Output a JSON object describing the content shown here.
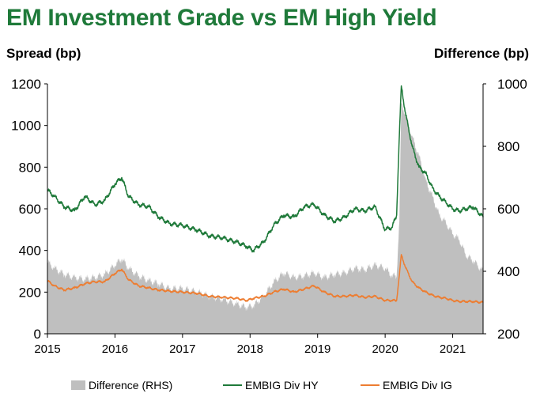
{
  "chart_data": {
    "type": "line",
    "title": "EM Investment Grade vs EM High Yield",
    "ylabel": "Spread (bp)",
    "y2label": "Difference (bp)",
    "ylim": [
      0,
      1200
    ],
    "y2lim": [
      200,
      1000
    ],
    "yticks": [
      "0",
      "200",
      "400",
      "600",
      "800",
      "1000",
      "1200"
    ],
    "y2ticks": [
      "200",
      "400",
      "600",
      "800",
      "1000"
    ],
    "xlim": [
      2015.0,
      2021.45
    ],
    "xticks": [
      "2015",
      "2016",
      "2017",
      "2018",
      "2019",
      "2020",
      "2021"
    ],
    "legend_position": "bottom",
    "series": [
      {
        "name": "Difference (RHS)",
        "type": "area",
        "axis": "right",
        "color": "#bfbfbf",
        "x": [
          2015.0,
          2015.1,
          2015.25,
          2015.4,
          2015.55,
          2015.7,
          2015.85,
          2016.0,
          2016.1,
          2016.2,
          2016.35,
          2016.5,
          2016.65,
          2016.8,
          2017.0,
          2017.2,
          2017.4,
          2017.6,
          2017.8,
          2017.95,
          2018.05,
          2018.2,
          2018.35,
          2018.5,
          2018.65,
          2018.8,
          2018.95,
          2019.1,
          2019.25,
          2019.4,
          2019.55,
          2019.7,
          2019.85,
          2020.0,
          2020.1,
          2020.17,
          2020.21,
          2020.24,
          2020.3,
          2020.4,
          2020.5,
          2020.6,
          2020.7,
          2020.8,
          2020.9,
          2021.0,
          2021.1,
          2021.2,
          2021.3,
          2021.45
        ],
        "values": [
          430,
          410,
          390,
          380,
          375,
          380,
          390,
          420,
          440,
          410,
          385,
          370,
          360,
          345,
          345,
          335,
          320,
          310,
          295,
          285,
          290,
          320,
          365,
          395,
          380,
          385,
          395,
          380,
          390,
          395,
          410,
          405,
          420,
          410,
          385,
          385,
          560,
          940,
          900,
          830,
          770,
          690,
          640,
          580,
          555,
          520,
          500,
          450,
          435,
          400
        ]
      },
      {
        "name": "EMBIG Div HY",
        "type": "line",
        "axis": "left",
        "color": "#1f7a3a",
        "x": [
          2015.0,
          2015.1,
          2015.25,
          2015.4,
          2015.55,
          2015.7,
          2015.85,
          2016.0,
          2016.1,
          2016.2,
          2016.35,
          2016.5,
          2016.65,
          2016.8,
          2017.0,
          2017.2,
          2017.4,
          2017.6,
          2017.8,
          2017.95,
          2018.05,
          2018.2,
          2018.35,
          2018.5,
          2018.65,
          2018.8,
          2018.95,
          2019.1,
          2019.25,
          2019.4,
          2019.55,
          2019.7,
          2019.85,
          2020.0,
          2020.1,
          2020.17,
          2020.21,
          2020.24,
          2020.3,
          2020.4,
          2020.5,
          2020.6,
          2020.7,
          2020.8,
          2020.9,
          2021.0,
          2021.1,
          2021.2,
          2021.3,
          2021.45
        ],
        "values": [
          690,
          660,
          610,
          590,
          660,
          620,
          640,
          720,
          750,
          660,
          620,
          610,
          560,
          530,
          520,
          500,
          470,
          460,
          440,
          420,
          400,
          440,
          520,
          570,
          560,
          610,
          620,
          570,
          540,
          560,
          600,
          590,
          610,
          500,
          510,
          570,
          950,
          1190,
          1060,
          900,
          800,
          770,
          700,
          660,
          630,
          600,
          590,
          600,
          610,
          560
        ]
      },
      {
        "name": "EMBIG Div IG",
        "type": "line",
        "axis": "left",
        "color": "#ed7d31",
        "x": [
          2015.0,
          2015.1,
          2015.25,
          2015.4,
          2015.55,
          2015.7,
          2015.85,
          2016.0,
          2016.1,
          2016.2,
          2016.35,
          2016.5,
          2016.65,
          2016.8,
          2017.0,
          2017.2,
          2017.4,
          2017.6,
          2017.8,
          2017.95,
          2018.05,
          2018.2,
          2018.35,
          2018.5,
          2018.65,
          2018.8,
          2018.95,
          2019.1,
          2019.25,
          2019.4,
          2019.55,
          2019.7,
          2019.85,
          2020.0,
          2020.1,
          2020.17,
          2020.21,
          2020.24,
          2020.3,
          2020.4,
          2020.5,
          2020.6,
          2020.7,
          2020.8,
          2020.9,
          2021.0,
          2021.1,
          2021.2,
          2021.3,
          2021.45
        ],
        "values": [
          255,
          230,
          210,
          220,
          240,
          250,
          250,
          290,
          310,
          260,
          230,
          220,
          210,
          205,
          200,
          195,
          180,
          175,
          170,
          160,
          170,
          180,
          200,
          215,
          200,
          215,
          230,
          200,
          180,
          180,
          185,
          175,
          180,
          160,
          160,
          160,
          280,
          380,
          320,
          250,
          220,
          200,
          185,
          175,
          170,
          160,
          155,
          155,
          155,
          150
        ]
      }
    ]
  }
}
